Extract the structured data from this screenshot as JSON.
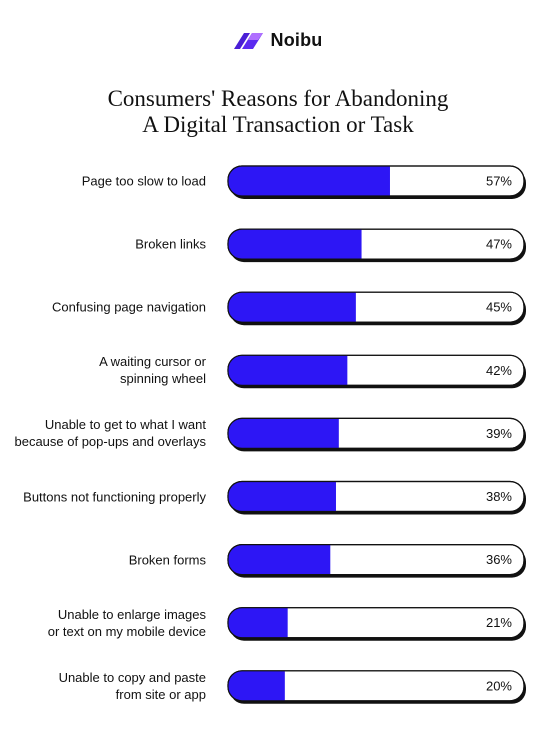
{
  "brand": {
    "name": "Noibu",
    "icon": "noibu-logo-icon",
    "colors": [
      "#4a1fd6",
      "#b070ff"
    ]
  },
  "chart_data": {
    "type": "bar",
    "orientation": "horizontal",
    "title": "Consumers' Reasons for Abandoning A Digital Transaction or Task",
    "title_lines": [
      "Consumers' Reasons for Abandoning",
      "A Digital Transaction or Task"
    ],
    "categories": [
      "Page too slow to load",
      "Broken links",
      "Confusing page navigation",
      "A waiting cursor or spinning wheel",
      "Unable to get to what I want because of pop-ups and overlays",
      "Buttons not functioning properly",
      "Broken forms",
      "Unable to enlarge images or text on my mobile device",
      "Unable to copy and paste from site or app"
    ],
    "category_lines": [
      [
        "Page too slow to load"
      ],
      [
        "Broken links"
      ],
      [
        "Confusing page navigation"
      ],
      [
        "A waiting cursor or",
        "spinning wheel"
      ],
      [
        "Unable to get to what I want",
        "because of pop-ups and overlays"
      ],
      [
        "Buttons not functioning properly"
      ],
      [
        "Broken forms"
      ],
      [
        "Unable to enlarge images",
        "or text on my mobile device"
      ],
      [
        "Unable to copy and paste",
        "from site or app"
      ]
    ],
    "values": [
      57,
      47,
      45,
      42,
      39,
      38,
      36,
      21,
      20
    ],
    "value_labels": [
      "57%",
      "47%",
      "45%",
      "42%",
      "39%",
      "38%",
      "36%",
      "21%",
      "20%"
    ],
    "unit": "%",
    "grid": false,
    "legend": "none",
    "colors": {
      "fill": "#2d16f5",
      "track": "#ffffff",
      "outline": "#111111",
      "shadow": "#111111"
    }
  }
}
